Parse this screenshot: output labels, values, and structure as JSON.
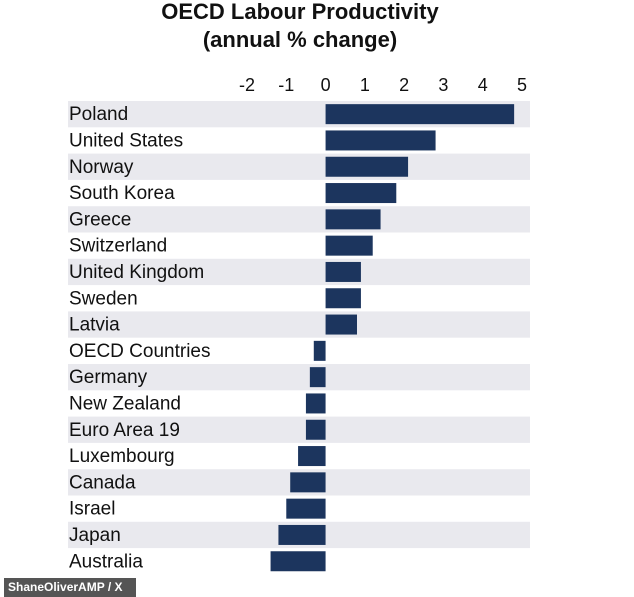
{
  "chart_data": {
    "type": "barh",
    "title": "OECD Labour Productivity",
    "subtitle": "(annual % change)",
    "categories": [
      "Poland",
      "United States",
      "Norway",
      "South Korea",
      "Greece",
      "Switzerland",
      "United Kingdom",
      "Sweden",
      "Latvia",
      "OECD Countries",
      "Germany",
      "New Zealand",
      "Euro Area 19",
      "Luxembourg",
      "Canada",
      "Israel",
      "Japan",
      "Australia"
    ],
    "values": [
      4.8,
      2.8,
      2.1,
      1.8,
      1.4,
      1.2,
      0.9,
      0.9,
      0.8,
      -0.3,
      -0.4,
      -0.5,
      -0.5,
      -0.7,
      -0.9,
      -1.0,
      -1.2,
      -1.4
    ],
    "color": "#1c355e",
    "xlim": [
      -2,
      5
    ],
    "xticks": [
      -2,
      -1,
      0,
      1,
      2,
      3,
      4,
      5
    ],
    "grid": false,
    "source": "ShaneOliverAMP / X"
  }
}
